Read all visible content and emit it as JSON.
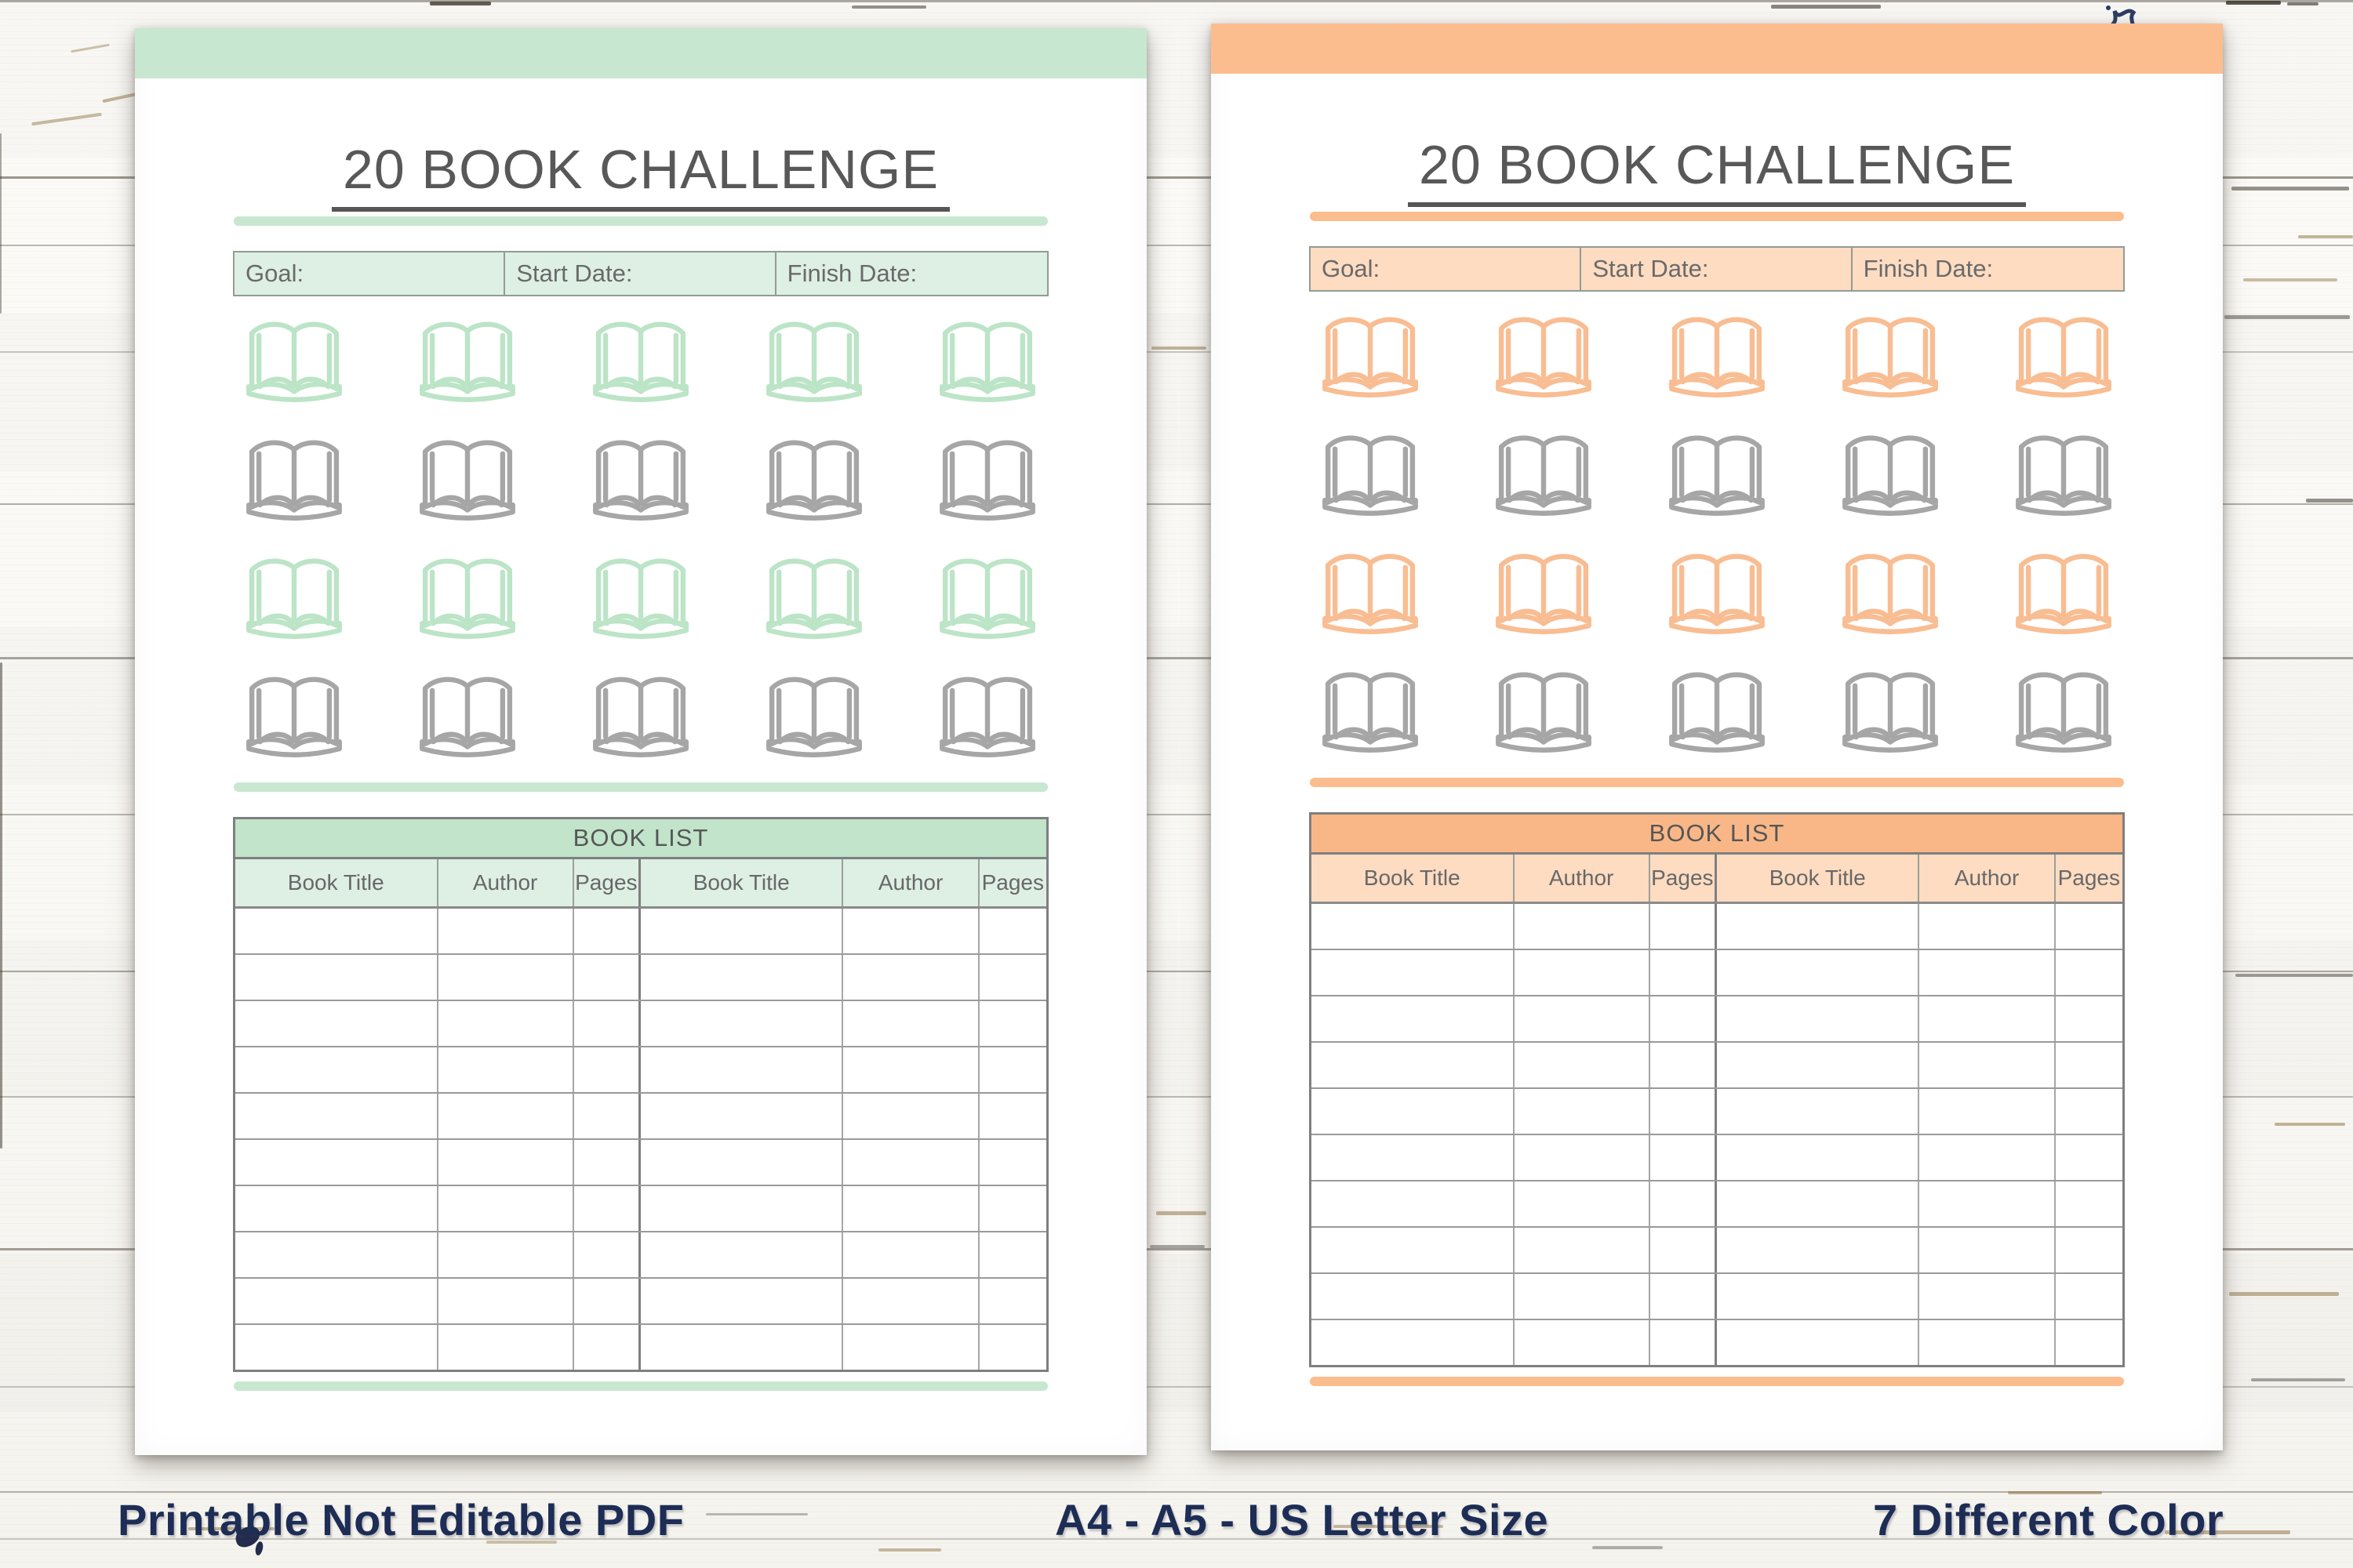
{
  "planner": {
    "title": "20 BOOK CHALLENGE",
    "goal_label": "Goal:",
    "start_date_label": "Start Date:",
    "finish_date_label": "Finish Date:",
    "book_list_title": "BOOK LIST",
    "columns": [
      "Book Title",
      "Author",
      "Pages",
      "Book Title",
      "Author",
      "Pages"
    ],
    "empty_rows": 10,
    "book_grid": {
      "rows": 4,
      "cols": 5,
      "row_styles": [
        "accent",
        "gray",
        "accent",
        "gray"
      ],
      "gray_icon_color": "#a6a6a6",
      "icon": "open-book-icon"
    },
    "title_color": "#585858",
    "border_gray": "#8a8a8a"
  },
  "pages": [
    {
      "name": "mint",
      "colors": {
        "bar": "#c8e7d1",
        "header": "#c1e4cb",
        "light": "#deefe4",
        "icon": "#bce4c7"
      }
    },
    {
      "name": "orange",
      "colors": {
        "bar": "#fbbd8e",
        "header": "#f9b787",
        "light": "#fddcc1",
        "icon": "#f8bd92"
      }
    }
  ],
  "captions": [
    {
      "text": "Printable Not Editable PDF"
    },
    {
      "text": "A4 - A5 - US Letter Size"
    },
    {
      "text": "7 Different Color"
    }
  ],
  "caption_color": "#1d2d55"
}
